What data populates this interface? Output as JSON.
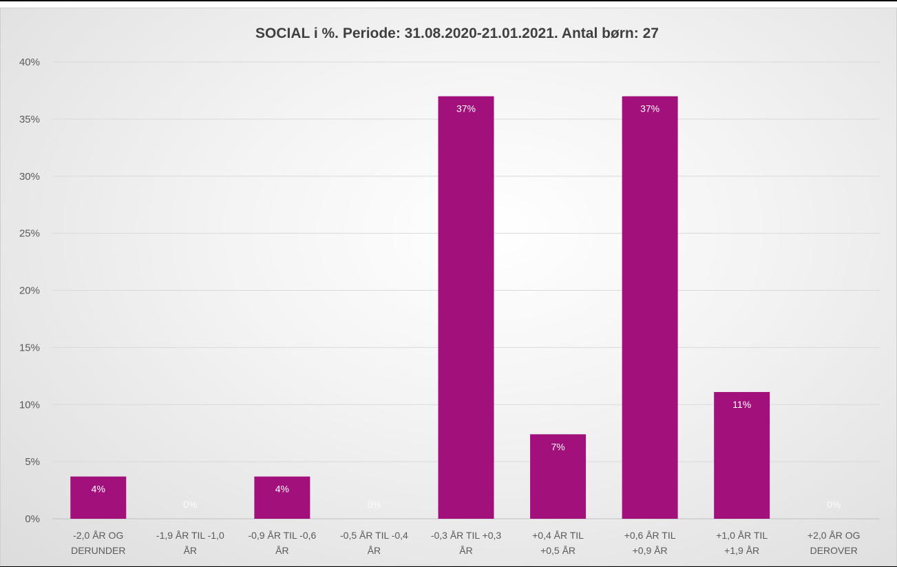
{
  "chart_data": {
    "type": "bar",
    "title": "SOCIAL i %. Periode: 31.08.2020-21.01.2021.  Antal børn: 27",
    "categories": [
      [
        "-2,0 ÅR OG",
        "DERUNDER"
      ],
      [
        "-1,9 ÅR TIL -1,0",
        "ÅR"
      ],
      [
        "-0,9 ÅR TIL -0,6",
        "ÅR"
      ],
      [
        "-0,5 ÅR TIL -0,4",
        "ÅR"
      ],
      [
        "-0,3 ÅR TIL +0,3",
        "ÅR"
      ],
      [
        "+0,4 ÅR TIL",
        "+0,5 ÅR"
      ],
      [
        "+0,6 ÅR TIL",
        "+0,9 ÅR"
      ],
      [
        "+1,0 ÅR TIL",
        "+1,9 ÅR"
      ],
      [
        "+2,0 ÅR OG",
        "DEROVER"
      ]
    ],
    "values": [
      3.7,
      0,
      3.7,
      0,
      37.0,
      7.4,
      37.0,
      11.1,
      0
    ],
    "data_labels": [
      "4%",
      "0%",
      "4%",
      "0%",
      "37%",
      "7%",
      "37%",
      "11%",
      "0%"
    ],
    "ylim": [
      0,
      40
    ],
    "yticks": [
      0,
      5,
      10,
      15,
      20,
      25,
      30,
      35,
      40
    ],
    "ytick_labels": [
      "0%",
      "5%",
      "10%",
      "15%",
      "20%",
      "25%",
      "30%",
      "35%",
      "40%"
    ],
    "xlabel": "",
    "ylabel": "",
    "grid": true,
    "bar_color": "#a2107c"
  }
}
